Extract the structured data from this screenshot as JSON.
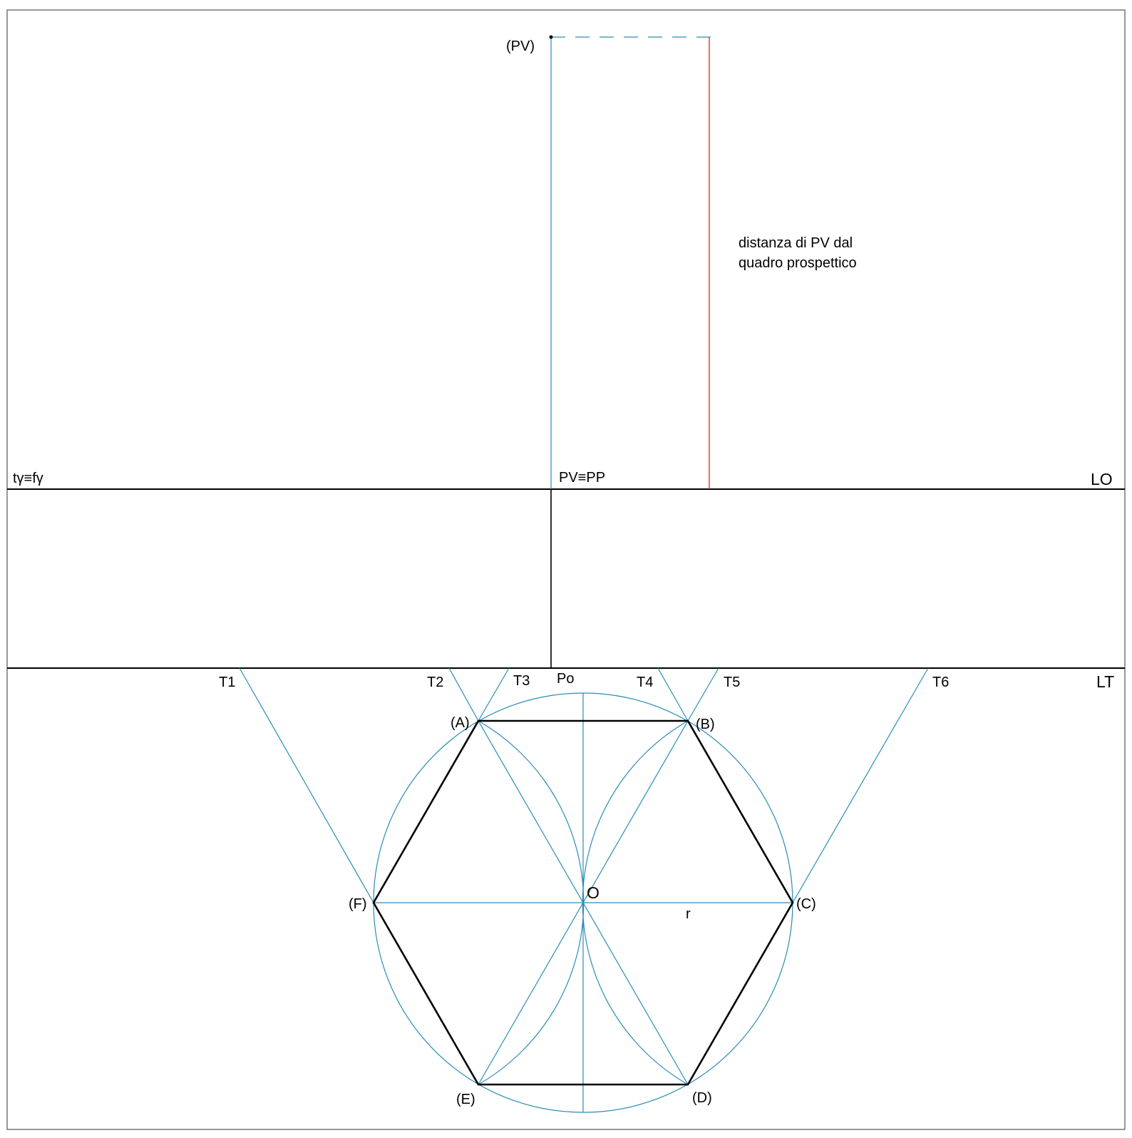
{
  "labels": {
    "pv_raised": "(PV)",
    "distance_line1": "distanza di PV dal",
    "distance_line2": "quadro prospettico",
    "t_gamma": "tγ≡fγ",
    "pv_pp": "PV≡PP",
    "lo": "LO",
    "lt": "LT",
    "po": "Po",
    "t1": "T1",
    "t2": "T2",
    "t3": "T3",
    "t4": "T4",
    "t5": "T5",
    "t6": "T6",
    "a": "(A)",
    "b": "(B)",
    "c": "(C)",
    "d": "(D)",
    "e": "(E)",
    "f": "(F)",
    "o": "O",
    "r": "r"
  },
  "colors": {
    "construction": "#2a8db5",
    "distance": "#e0302a",
    "outline": "#000000",
    "frame": "#555555"
  }
}
